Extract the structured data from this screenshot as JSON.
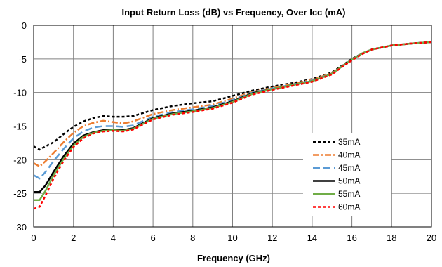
{
  "chart_data": {
    "type": "line",
    "title": "Input Return Loss (dB) vs Frequency, Over Icc (mA)",
    "xlabel": "Frequency (GHz)",
    "ylabel": "",
    "xlim": [
      0,
      20
    ],
    "ylim": [
      -30,
      0
    ],
    "x_ticks": [
      "0",
      "2",
      "4",
      "6",
      "8",
      "10",
      "12",
      "14",
      "16",
      "18",
      "20"
    ],
    "y_ticks": [
      "0",
      "-5",
      "-10",
      "-15",
      "-20",
      "-25",
      "-30"
    ],
    "grid": true,
    "legend_position": "right",
    "series": [
      {
        "name": "35mA",
        "color": "#000000",
        "dash": "short-dash",
        "points": [
          [
            0,
            -18.0
          ],
          [
            0.3,
            -18.5
          ],
          [
            0.6,
            -18.0
          ],
          [
            1.0,
            -17.4
          ],
          [
            1.5,
            -16.2
          ],
          [
            2.0,
            -15.1
          ],
          [
            2.5,
            -14.3
          ],
          [
            3.0,
            -13.8
          ],
          [
            3.5,
            -13.5
          ],
          [
            4.0,
            -13.6
          ],
          [
            4.5,
            -13.6
          ],
          [
            5.0,
            -13.5
          ],
          [
            6.0,
            -12.6
          ],
          [
            7.0,
            -12.0
          ],
          [
            8.0,
            -11.6
          ],
          [
            9.0,
            -11.3
          ],
          [
            10.0,
            -10.5
          ],
          [
            11.0,
            -9.7
          ],
          [
            12.0,
            -9.1
          ],
          [
            13.0,
            -8.6
          ],
          [
            14.0,
            -8.0
          ],
          [
            15.0,
            -7.0
          ],
          [
            15.5,
            -6.0
          ],
          [
            16.0,
            -5.0
          ],
          [
            16.5,
            -4.2
          ],
          [
            17.0,
            -3.6
          ],
          [
            18.0,
            -3.0
          ],
          [
            19.0,
            -2.7
          ],
          [
            20.0,
            -2.5
          ]
        ]
      },
      {
        "name": "40mA",
        "color": "#ED7D31",
        "dash": "dash-dot",
        "points": [
          [
            0,
            -20.5
          ],
          [
            0.3,
            -21.0
          ],
          [
            0.6,
            -20.2
          ],
          [
            1.0,
            -19.0
          ],
          [
            1.5,
            -17.4
          ],
          [
            2.0,
            -16.0
          ],
          [
            2.5,
            -15.0
          ],
          [
            3.0,
            -14.5
          ],
          [
            3.5,
            -14.2
          ],
          [
            4.0,
            -14.4
          ],
          [
            4.5,
            -14.6
          ],
          [
            5.0,
            -14.3
          ],
          [
            6.0,
            -13.2
          ],
          [
            7.0,
            -12.6
          ],
          [
            8.0,
            -12.2
          ],
          [
            9.0,
            -11.8
          ],
          [
            10.0,
            -10.9
          ],
          [
            11.0,
            -9.9
          ],
          [
            12.0,
            -9.3
          ],
          [
            13.0,
            -8.7
          ],
          [
            14.0,
            -8.1
          ],
          [
            15.0,
            -7.1
          ],
          [
            15.5,
            -6.1
          ],
          [
            16.0,
            -5.1
          ],
          [
            16.5,
            -4.2
          ],
          [
            17.0,
            -3.6
          ],
          [
            18.0,
            -3.0
          ],
          [
            19.0,
            -2.7
          ],
          [
            20.0,
            -2.5
          ]
        ]
      },
      {
        "name": "45mA",
        "color": "#5B9BD5",
        "dash": "long-dash",
        "points": [
          [
            0,
            -22.3
          ],
          [
            0.3,
            -22.8
          ],
          [
            0.6,
            -21.8
          ],
          [
            1.0,
            -20.2
          ],
          [
            1.5,
            -18.4
          ],
          [
            2.0,
            -16.8
          ],
          [
            2.5,
            -15.8
          ],
          [
            3.0,
            -15.2
          ],
          [
            3.5,
            -15.0
          ],
          [
            4.0,
            -15.0
          ],
          [
            4.5,
            -15.1
          ],
          [
            5.0,
            -14.9
          ],
          [
            6.0,
            -13.6
          ],
          [
            7.0,
            -12.9
          ],
          [
            8.0,
            -12.5
          ],
          [
            9.0,
            -12.0
          ],
          [
            10.0,
            -11.1
          ],
          [
            11.0,
            -10.0
          ],
          [
            12.0,
            -9.4
          ],
          [
            13.0,
            -8.8
          ],
          [
            14.0,
            -8.2
          ],
          [
            15.0,
            -7.2
          ],
          [
            15.5,
            -6.1
          ],
          [
            16.0,
            -5.1
          ],
          [
            16.5,
            -4.2
          ],
          [
            17.0,
            -3.6
          ],
          [
            18.0,
            -3.0
          ],
          [
            19.0,
            -2.7
          ],
          [
            20.0,
            -2.5
          ]
        ]
      },
      {
        "name": "50mA",
        "color": "#000000",
        "dash": "solid",
        "points": [
          [
            0,
            -24.8
          ],
          [
            0.3,
            -24.8
          ],
          [
            0.6,
            -23.8
          ],
          [
            1.0,
            -21.8
          ],
          [
            1.5,
            -19.5
          ],
          [
            2.0,
            -17.6
          ],
          [
            2.5,
            -16.4
          ],
          [
            3.0,
            -15.9
          ],
          [
            3.5,
            -15.6
          ],
          [
            4.0,
            -15.5
          ],
          [
            4.5,
            -15.6
          ],
          [
            5.0,
            -15.3
          ],
          [
            6.0,
            -13.8
          ],
          [
            7.0,
            -13.1
          ],
          [
            8.0,
            -12.7
          ],
          [
            9.0,
            -12.2
          ],
          [
            10.0,
            -11.3
          ],
          [
            11.0,
            -10.1
          ],
          [
            12.0,
            -9.5
          ],
          [
            13.0,
            -8.9
          ],
          [
            14.0,
            -8.3
          ],
          [
            15.0,
            -7.2
          ],
          [
            15.5,
            -6.1
          ],
          [
            16.0,
            -5.1
          ],
          [
            16.5,
            -4.2
          ],
          [
            17.0,
            -3.6
          ],
          [
            18.0,
            -3.0
          ],
          [
            19.0,
            -2.7
          ],
          [
            20.0,
            -2.5
          ]
        ]
      },
      {
        "name": "55mA",
        "color": "#70AD47",
        "dash": "solid",
        "points": [
          [
            0,
            -26.0
          ],
          [
            0.3,
            -26.0
          ],
          [
            0.6,
            -24.6
          ],
          [
            1.0,
            -22.3
          ],
          [
            1.5,
            -19.9
          ],
          [
            2.0,
            -17.9
          ],
          [
            2.5,
            -16.6
          ],
          [
            3.0,
            -16.0
          ],
          [
            3.5,
            -15.7
          ],
          [
            4.0,
            -15.6
          ],
          [
            4.5,
            -15.7
          ],
          [
            5.0,
            -15.4
          ],
          [
            6.0,
            -13.9
          ],
          [
            7.0,
            -13.2
          ],
          [
            8.0,
            -12.8
          ],
          [
            9.0,
            -12.3
          ],
          [
            10.0,
            -11.4
          ],
          [
            11.0,
            -10.2
          ],
          [
            12.0,
            -9.5
          ],
          [
            13.0,
            -8.9
          ],
          [
            14.0,
            -8.3
          ],
          [
            15.0,
            -7.2
          ],
          [
            15.5,
            -6.1
          ],
          [
            16.0,
            -5.1
          ],
          [
            16.5,
            -4.2
          ],
          [
            17.0,
            -3.6
          ],
          [
            18.0,
            -3.0
          ],
          [
            19.0,
            -2.7
          ],
          [
            20.0,
            -2.5
          ]
        ]
      },
      {
        "name": "60mA",
        "color": "#FF0000",
        "dash": "short-dash",
        "points": [
          [
            0,
            -27.3
          ],
          [
            0.3,
            -27.0
          ],
          [
            0.6,
            -25.3
          ],
          [
            1.0,
            -22.8
          ],
          [
            1.5,
            -20.2
          ],
          [
            2.0,
            -18.1
          ],
          [
            2.5,
            -16.8
          ],
          [
            3.0,
            -16.1
          ],
          [
            3.5,
            -15.8
          ],
          [
            4.0,
            -15.7
          ],
          [
            4.5,
            -15.8
          ],
          [
            5.0,
            -15.5
          ],
          [
            6.0,
            -14.0
          ],
          [
            7.0,
            -13.3
          ],
          [
            8.0,
            -12.9
          ],
          [
            9.0,
            -12.4
          ],
          [
            10.0,
            -11.5
          ],
          [
            11.0,
            -10.3
          ],
          [
            12.0,
            -9.6
          ],
          [
            13.0,
            -9.0
          ],
          [
            14.0,
            -8.4
          ],
          [
            15.0,
            -7.3
          ],
          [
            15.5,
            -6.2
          ],
          [
            16.0,
            -5.2
          ],
          [
            16.5,
            -4.3
          ],
          [
            17.0,
            -3.6
          ],
          [
            18.0,
            -3.0
          ],
          [
            19.0,
            -2.7
          ],
          [
            20.0,
            -2.5
          ]
        ]
      }
    ]
  }
}
